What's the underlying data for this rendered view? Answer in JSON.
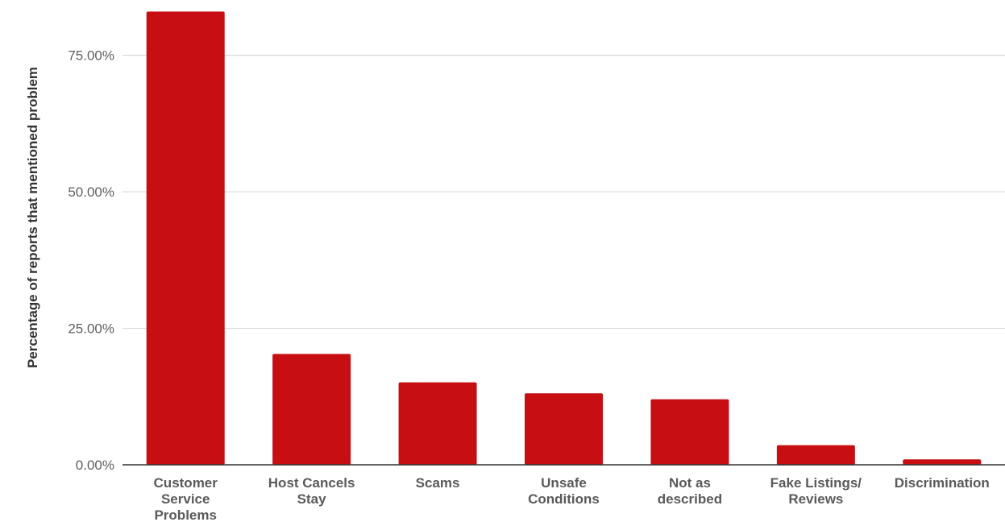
{
  "chart_data": {
    "type": "bar",
    "title": "",
    "xlabel": "",
    "ylabel": "Percentage of reports that mentioned problem",
    "categories": [
      "Customer Service Problems",
      "Host Cancels Stay",
      "Scams",
      "Unsafe Conditions",
      "Not as described",
      "Fake Listings/ Reviews",
      "Discrimination"
    ],
    "category_lines": [
      [
        "Customer",
        "Service",
        "Problems"
      ],
      [
        "Host Cancels",
        "Stay"
      ],
      [
        "Scams"
      ],
      [
        "Unsafe",
        "Conditions"
      ],
      [
        "Not as",
        "described"
      ],
      [
        "Fake Listings/",
        "Reviews"
      ],
      [
        "Discrimination"
      ]
    ],
    "values": [
      83.0,
      20.3,
      15.1,
      13.1,
      12.0,
      3.6,
      1.0
    ],
    "ylim": [
      0,
      83.5
    ],
    "yticks": [
      0,
      25,
      50,
      75
    ],
    "ytick_labels": [
      "0.00%",
      "25.00%",
      "50.00%",
      "75.00%"
    ],
    "grid": true,
    "legend": "none",
    "colors": {
      "bar": "#c70e13",
      "grid": "#d9d9d9",
      "axis": "#333333"
    }
  }
}
